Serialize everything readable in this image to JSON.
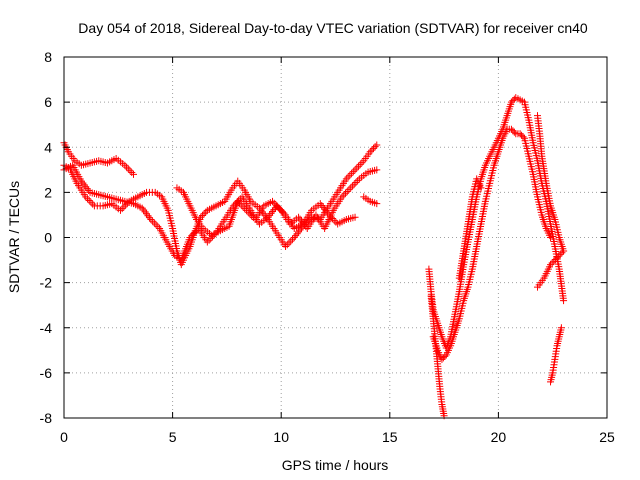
{
  "chart_data": {
    "type": "scatter",
    "title": "Day 054 of 2018, Sidereal Day-to-day VTEC variation (SDTVAR) for receiver cn40",
    "xlabel": "GPS time / hours",
    "ylabel": "SDTVAR / TECUs",
    "xlim": [
      0,
      25
    ],
    "ylim": [
      -8,
      8
    ],
    "xticks": [
      "0",
      "5",
      "10",
      "15",
      "20",
      "25"
    ],
    "yticks": [
      "-8",
      "-6",
      "-4",
      "-2",
      "0",
      "2",
      "4",
      "6",
      "8"
    ],
    "grid": true,
    "marker": "plus",
    "color": "#ff0000",
    "series": [
      {
        "points": [
          [
            0.0,
            4.2
          ],
          [
            0.2,
            3.8
          ],
          [
            0.5,
            3.4
          ],
          [
            0.8,
            3.2
          ],
          [
            1.2,
            3.3
          ],
          [
            1.6,
            3.4
          ],
          [
            2.0,
            3.3
          ],
          [
            2.4,
            3.5
          ],
          [
            2.8,
            3.2
          ],
          [
            3.2,
            2.8
          ]
        ]
      },
      {
        "points": [
          [
            0.0,
            3.2
          ],
          [
            0.3,
            3.0
          ],
          [
            0.6,
            2.4
          ],
          [
            1.0,
            1.8
          ],
          [
            1.4,
            1.4
          ],
          [
            1.8,
            1.4
          ],
          [
            2.2,
            1.5
          ],
          [
            2.6,
            1.2
          ],
          [
            3.0,
            1.6
          ],
          [
            3.4,
            1.8
          ],
          [
            3.8,
            2.0
          ],
          [
            4.2,
            2.0
          ],
          [
            4.5,
            1.8
          ],
          [
            4.8,
            1.2
          ],
          [
            5.0,
            0.4
          ],
          [
            5.2,
            -0.6
          ],
          [
            5.4,
            -1.2
          ],
          [
            5.6,
            -0.8
          ],
          [
            5.8,
            -0.4
          ],
          [
            6.0,
            0.2
          ],
          [
            6.3,
            0.9
          ],
          [
            6.6,
            1.2
          ],
          [
            7.0,
            1.4
          ],
          [
            7.4,
            1.6
          ],
          [
            7.7,
            2.1
          ],
          [
            8.0,
            2.5
          ],
          [
            8.3,
            2.1
          ],
          [
            8.6,
            1.6
          ],
          [
            9.0,
            1.3
          ],
          [
            9.4,
            0.8
          ],
          [
            9.8,
            0.2
          ],
          [
            10.2,
            -0.4
          ],
          [
            10.6,
            0.0
          ],
          [
            11.0,
            0.5
          ],
          [
            11.4,
            0.9
          ],
          [
            11.8,
            0.8
          ],
          [
            12.2,
            1.4
          ],
          [
            12.6,
            2.0
          ],
          [
            13.0,
            2.6
          ],
          [
            13.4,
            3.0
          ],
          [
            13.8,
            3.4
          ],
          [
            14.1,
            3.8
          ],
          [
            14.4,
            4.1
          ]
        ]
      },
      {
        "points": [
          [
            0.0,
            3.0
          ],
          [
            0.4,
            3.2
          ],
          [
            0.8,
            2.5
          ],
          [
            1.2,
            2.0
          ],
          [
            1.6,
            1.9
          ],
          [
            2.0,
            1.8
          ],
          [
            2.4,
            1.7
          ],
          [
            2.8,
            1.6
          ],
          [
            3.2,
            1.5
          ],
          [
            3.6,
            1.3
          ],
          [
            4.0,
            0.8
          ],
          [
            4.4,
            0.4
          ],
          [
            4.8,
            -0.3
          ],
          [
            5.1,
            -0.8
          ],
          [
            5.4,
            -1.0
          ],
          [
            5.8,
            0.0
          ],
          [
            6.2,
            0.4
          ],
          [
            6.6,
            -0.2
          ],
          [
            7.0,
            0.2
          ],
          [
            7.4,
            0.8
          ],
          [
            7.8,
            1.4
          ],
          [
            8.2,
            1.8
          ],
          [
            8.6,
            1.2
          ],
          [
            9.0,
            0.6
          ],
          [
            9.4,
            0.9
          ],
          [
            9.8,
            1.4
          ],
          [
            10.2,
            1.0
          ],
          [
            10.6,
            0.4
          ],
          [
            11.0,
            0.6
          ],
          [
            11.4,
            1.2
          ],
          [
            11.8,
            1.5
          ],
          [
            12.2,
            1.0
          ],
          [
            12.6,
            0.6
          ],
          [
            13.0,
            0.8
          ],
          [
            13.4,
            0.9
          ]
        ]
      },
      {
        "points": [
          [
            5.2,
            2.2
          ],
          [
            5.5,
            2.0
          ],
          [
            5.8,
            1.4
          ],
          [
            6.1,
            0.8
          ],
          [
            6.4,
            0.4
          ],
          [
            6.8,
            0.1
          ],
          [
            7.2,
            0.3
          ],
          [
            7.6,
            0.5
          ],
          [
            8.0,
            1.6
          ],
          [
            8.4,
            1.2
          ],
          [
            8.8,
            0.8
          ],
          [
            9.2,
            1.4
          ],
          [
            9.6,
            1.6
          ],
          [
            10.0,
            1.2
          ],
          [
            10.4,
            0.6
          ],
          [
            10.8,
            0.9
          ],
          [
            11.2,
            0.4
          ],
          [
            11.6,
            1.0
          ],
          [
            12.0,
            0.4
          ],
          [
            12.4,
            1.2
          ],
          [
            12.8,
            1.8
          ],
          [
            13.2,
            2.2
          ],
          [
            13.6,
            2.6
          ],
          [
            14.0,
            2.9
          ],
          [
            14.4,
            3.0
          ]
        ]
      },
      {
        "points": [
          [
            13.8,
            1.8
          ],
          [
            14.1,
            1.6
          ],
          [
            14.4,
            1.5
          ]
        ]
      },
      {
        "points": [
          [
            16.8,
            -1.4
          ],
          [
            16.9,
            -2.4
          ],
          [
            17.0,
            -3.2
          ],
          [
            17.2,
            -3.8
          ],
          [
            17.4,
            -4.4
          ],
          [
            17.6,
            -4.9
          ],
          [
            17.8,
            -4.4
          ],
          [
            18.0,
            -3.4
          ],
          [
            18.2,
            -2.4
          ],
          [
            18.4,
            -1.2
          ],
          [
            18.6,
            -0.2
          ],
          [
            18.8,
            0.8
          ],
          [
            19.0,
            1.8
          ],
          [
            19.2,
            2.6
          ],
          [
            19.4,
            3.2
          ],
          [
            19.6,
            3.6
          ],
          [
            19.8,
            4.0
          ],
          [
            20.0,
            4.4
          ],
          [
            20.2,
            4.8
          ],
          [
            20.4,
            5.4
          ],
          [
            20.6,
            6.0
          ],
          [
            20.8,
            6.2
          ],
          [
            21.0,
            6.1
          ],
          [
            21.2,
            6.0
          ],
          [
            21.4,
            5.2
          ],
          [
            21.6,
            4.2
          ],
          [
            21.8,
            3.4
          ],
          [
            22.0,
            2.4
          ],
          [
            22.2,
            1.6
          ],
          [
            22.4,
            0.6
          ],
          [
            22.6,
            -0.4
          ],
          [
            22.8,
            -1.4
          ],
          [
            23.0,
            -2.8
          ]
        ]
      },
      {
        "points": [
          [
            16.9,
            -2.6
          ],
          [
            17.0,
            -3.6
          ],
          [
            17.1,
            -4.6
          ],
          [
            17.2,
            -5.6
          ],
          [
            17.3,
            -6.6
          ],
          [
            17.4,
            -7.4
          ],
          [
            17.5,
            -7.9
          ]
        ]
      },
      {
        "points": [
          [
            17.0,
            -4.4
          ],
          [
            17.2,
            -5.0
          ],
          [
            17.4,
            -5.4
          ],
          [
            17.6,
            -5.2
          ],
          [
            17.8,
            -4.8
          ],
          [
            18.0,
            -4.2
          ],
          [
            18.2,
            -3.6
          ],
          [
            18.4,
            -2.8
          ],
          [
            18.6,
            -2.2
          ],
          [
            18.8,
            -1.4
          ],
          [
            19.0,
            -0.4
          ],
          [
            19.2,
            0.6
          ],
          [
            19.4,
            1.6
          ],
          [
            19.6,
            2.4
          ],
          [
            19.8,
            3.2
          ],
          [
            20.0,
            3.8
          ],
          [
            20.2,
            4.4
          ],
          [
            20.4,
            4.8
          ],
          [
            20.6,
            4.8
          ],
          [
            20.8,
            4.6
          ],
          [
            21.0,
            4.6
          ],
          [
            21.2,
            4.4
          ],
          [
            21.4,
            3.6
          ],
          [
            21.6,
            2.8
          ],
          [
            21.8,
            1.8
          ],
          [
            22.0,
            1.0
          ],
          [
            22.2,
            0.4
          ],
          [
            22.4,
            0.0
          ]
        ]
      },
      {
        "points": [
          [
            18.2,
            -1.8
          ],
          [
            18.4,
            -0.6
          ],
          [
            18.6,
            0.6
          ],
          [
            18.8,
            1.8
          ],
          [
            19.0,
            2.6
          ],
          [
            19.2,
            2.2
          ]
        ]
      },
      {
        "points": [
          [
            21.8,
            5.4
          ],
          [
            21.9,
            4.6
          ],
          [
            22.0,
            3.6
          ],
          [
            22.2,
            2.4
          ],
          [
            22.4,
            1.4
          ],
          [
            22.6,
            0.8
          ],
          [
            22.8,
            0.0
          ],
          [
            23.0,
            -0.6
          ]
        ]
      },
      {
        "points": [
          [
            21.8,
            -2.2
          ],
          [
            22.1,
            -1.8
          ],
          [
            22.4,
            -1.2
          ],
          [
            22.7,
            -0.9
          ],
          [
            23.0,
            -0.6
          ]
        ]
      },
      {
        "points": [
          [
            22.4,
            -6.4
          ],
          [
            22.5,
            -6.0
          ],
          [
            22.6,
            -5.4
          ],
          [
            22.7,
            -4.8
          ],
          [
            22.8,
            -4.4
          ],
          [
            22.9,
            -4.0
          ]
        ]
      }
    ]
  }
}
